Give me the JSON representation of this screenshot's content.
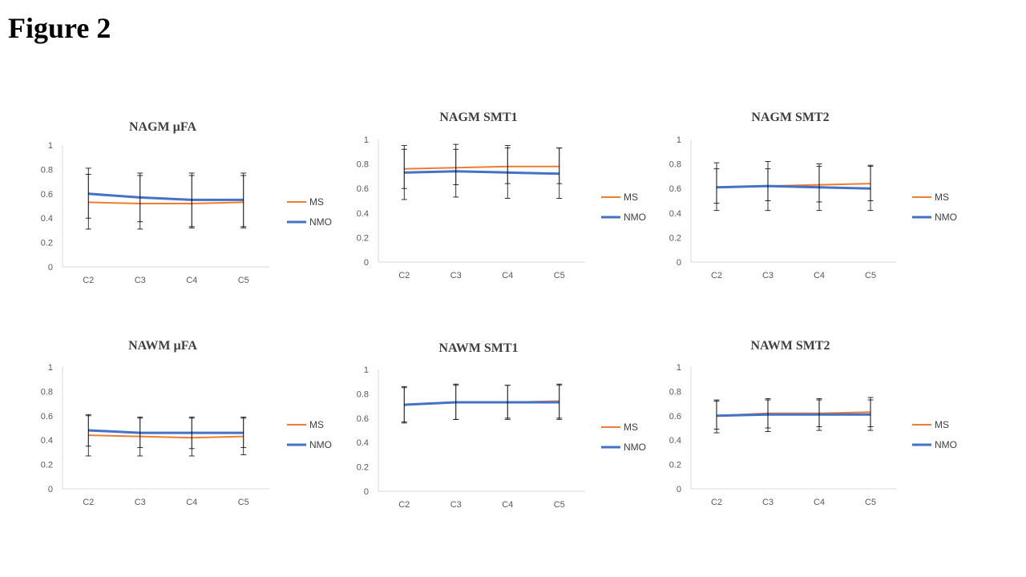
{
  "figure_title": "Figure 2",
  "colors": {
    "MS": "#ED7D31",
    "NMO": "#4472C4",
    "axis": "#D9D9D9",
    "error": "#000000"
  },
  "chart_data": [
    {
      "type": "line",
      "title": "NAGM µFA",
      "categories": [
        "C2",
        "C3",
        "C4",
        "C5"
      ],
      "ylim": [
        0,
        1
      ],
      "yticks": [
        "0",
        "0.2",
        "0.4",
        "0.6",
        "0.8",
        "1"
      ],
      "series": [
        {
          "name": "MS",
          "values": [
            0.53,
            0.52,
            0.52,
            0.53
          ],
          "error_low": [
            0.31,
            0.31,
            0.32,
            0.32
          ],
          "error_high": [
            0.76,
            0.75,
            0.75,
            0.75
          ]
        },
        {
          "name": "NMO",
          "values": [
            0.6,
            0.57,
            0.55,
            0.55
          ],
          "error_low": [
            0.4,
            0.37,
            0.33,
            0.33
          ],
          "error_high": [
            0.81,
            0.77,
            0.77,
            0.77
          ]
        }
      ]
    },
    {
      "type": "line",
      "title": "NAGM SMT1",
      "categories": [
        "C2",
        "C3",
        "C4",
        "C5"
      ],
      "ylim": [
        0,
        1
      ],
      "yticks": [
        "0",
        "0.2",
        "0.4",
        "0.6",
        "0.8",
        "1"
      ],
      "series": [
        {
          "name": "MS",
          "values": [
            0.76,
            0.77,
            0.78,
            0.78
          ],
          "error_low": [
            0.6,
            0.63,
            0.64,
            0.64
          ],
          "error_high": [
            0.92,
            0.92,
            0.93,
            0.93
          ]
        },
        {
          "name": "NMO",
          "values": [
            0.73,
            0.74,
            0.73,
            0.72
          ],
          "error_low": [
            0.51,
            0.53,
            0.52,
            0.52
          ],
          "error_high": [
            0.95,
            0.96,
            0.95,
            0.93
          ]
        }
      ]
    },
    {
      "type": "line",
      "title": "NAGM SMT2",
      "categories": [
        "C2",
        "C3",
        "C4",
        "C5"
      ],
      "ylim": [
        0,
        1
      ],
      "yticks": [
        "0",
        "0.2",
        "0.4",
        "0.6",
        "0.8",
        "1"
      ],
      "series": [
        {
          "name": "MS",
          "values": [
            0.61,
            0.62,
            0.63,
            0.64
          ],
          "error_low": [
            0.48,
            0.5,
            0.49,
            0.5
          ],
          "error_high": [
            0.76,
            0.76,
            0.78,
            0.79
          ]
        },
        {
          "name": "NMO",
          "values": [
            0.61,
            0.62,
            0.61,
            0.6
          ],
          "error_low": [
            0.42,
            0.42,
            0.42,
            0.42
          ],
          "error_high": [
            0.81,
            0.82,
            0.8,
            0.78
          ]
        }
      ]
    },
    {
      "type": "line",
      "title": "NAWM µFA",
      "categories": [
        "C2",
        "C3",
        "C4",
        "C5"
      ],
      "ylim": [
        0,
        1
      ],
      "yticks": [
        "0",
        "0.2",
        "0.4",
        "0.6",
        "0.8",
        "1"
      ],
      "series": [
        {
          "name": "MS",
          "values": [
            0.44,
            0.43,
            0.42,
            0.43
          ],
          "error_low": [
            0.27,
            0.27,
            0.27,
            0.28
          ],
          "error_high": [
            0.6,
            0.58,
            0.58,
            0.58
          ]
        },
        {
          "name": "NMO",
          "values": [
            0.48,
            0.46,
            0.46,
            0.46
          ],
          "error_low": [
            0.35,
            0.34,
            0.33,
            0.34
          ],
          "error_high": [
            0.61,
            0.59,
            0.59,
            0.59
          ]
        }
      ]
    },
    {
      "type": "line",
      "title": "NAWM SMT1",
      "categories": [
        "C2",
        "C3",
        "C4",
        "C5"
      ],
      "ylim": [
        0,
        1
      ],
      "yticks": [
        "0",
        "0.2",
        "0.4",
        "0.6",
        "0.8",
        "1"
      ],
      "series": [
        {
          "name": "MS",
          "values": [
            0.71,
            0.73,
            0.73,
            0.74
          ],
          "error_low": [
            0.56,
            0.59,
            0.6,
            0.6
          ],
          "error_high": [
            0.86,
            0.87,
            0.87,
            0.88
          ]
        },
        {
          "name": "NMO",
          "values": [
            0.71,
            0.73,
            0.73,
            0.73
          ],
          "error_low": [
            0.57,
            0.59,
            0.59,
            0.59
          ],
          "error_high": [
            0.85,
            0.88,
            0.87,
            0.87
          ]
        }
      ]
    },
    {
      "type": "line",
      "title": "NAWM SMT2",
      "categories": [
        "C2",
        "C3",
        "C4",
        "C5"
      ],
      "ylim": [
        0,
        1
      ],
      "yticks": [
        "0",
        "0.2",
        "0.4",
        "0.6",
        "0.8",
        "1"
      ],
      "series": [
        {
          "name": "MS",
          "values": [
            0.6,
            0.62,
            0.62,
            0.63
          ],
          "error_low": [
            0.49,
            0.5,
            0.51,
            0.51
          ],
          "error_high": [
            0.73,
            0.74,
            0.74,
            0.75
          ]
        },
        {
          "name": "NMO",
          "values": [
            0.6,
            0.61,
            0.61,
            0.61
          ],
          "error_low": [
            0.46,
            0.47,
            0.48,
            0.48
          ],
          "error_high": [
            0.72,
            0.73,
            0.73,
            0.73
          ]
        }
      ]
    }
  ]
}
